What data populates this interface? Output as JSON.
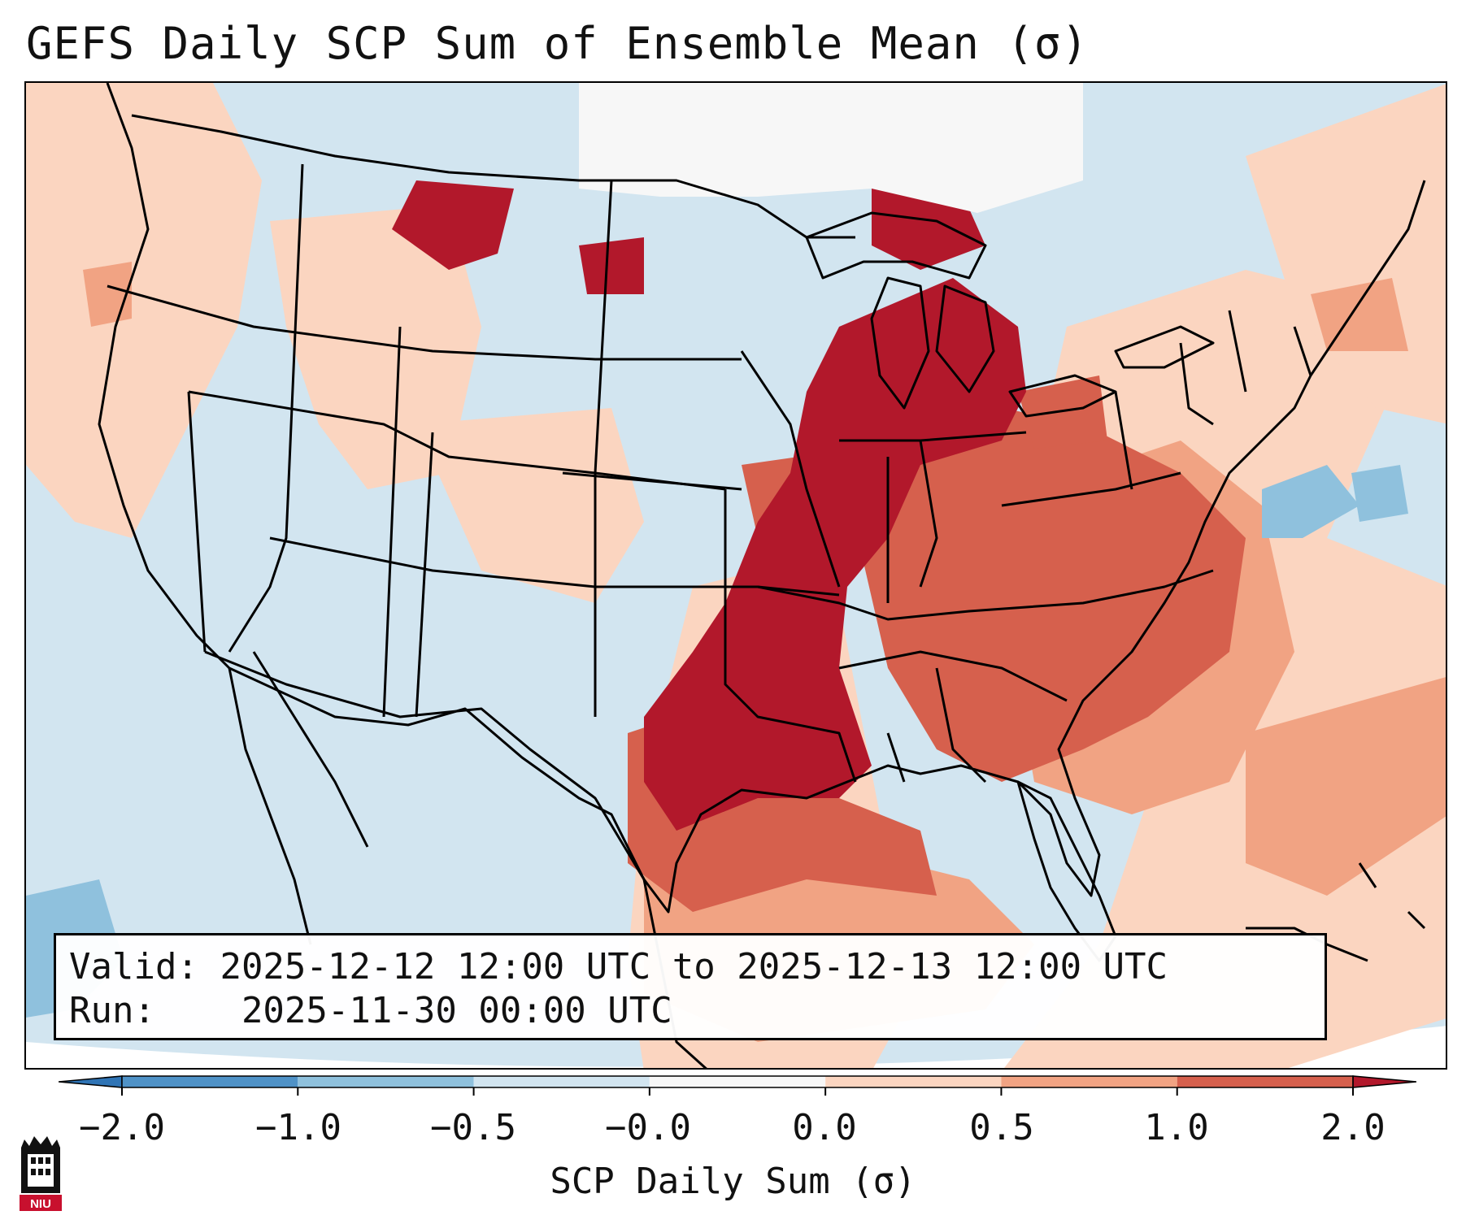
{
  "title": "GEFS Daily SCP Sum of Ensemble Mean (σ)",
  "info": {
    "valid_label": "Valid:",
    "valid_value": "2025-12-12 12:00 UTC to 2025-12-13 12:00 UTC",
    "run_label": "Run:",
    "run_value": "2025-11-30 00:00 UTC"
  },
  "colorbar": {
    "label": "SCP Daily Sum (σ)",
    "ticks": [
      "−2.0",
      "−1.0",
      "−0.5",
      "−0.0",
      "0.0",
      "0.5",
      "1.0",
      "2.0"
    ],
    "bins": [
      {
        "range": "< -2.0",
        "color": "#2f74b5"
      },
      {
        "range": "-2.0 to -1.0",
        "color": "#4f92c7"
      },
      {
        "range": "-1.0 to -0.5",
        "color": "#8fc1dd"
      },
      {
        "range": "-0.5 to -0.0",
        "color": "#d2e5f0"
      },
      {
        "range": "-0.0 to 0.0",
        "color": "#f7f7f7"
      },
      {
        "range": "0.0 to 0.5",
        "color": "#fbd5c0"
      },
      {
        "range": "0.5 to 1.0",
        "color": "#f1a383"
      },
      {
        "range": "1.0 to 2.0",
        "color": "#d6604d"
      },
      {
        "range": "> 2.0",
        "color": "#b2182b"
      }
    ]
  },
  "logo": {
    "text": "NIU"
  },
  "map": {
    "region": "Continental United States",
    "field": "SCP daily sum, ensemble mean (σ)",
    "regions": [
      {
        "name": "Mississippi Valley / Gulf Coast",
        "category": "> 2.0",
        "color": "#b2182b"
      },
      {
        "name": "Ohio Valley / Southeast",
        "category": "1.0 to 2.0",
        "color": "#d6604d"
      },
      {
        "name": "Gulf of Mexico",
        "category": "0.5 to 1.0",
        "color": "#f1a383"
      },
      {
        "name": "Western Atlantic / Mid-Atlantic",
        "category": "0.0 to 0.5",
        "color": "#fbd5c0"
      },
      {
        "name": "Ontario / Quebec",
        "category": "-0.0 to 0.0",
        "color": "#f7f7f7"
      },
      {
        "name": "Western US / Plains / Mexico",
        "category": "-0.5 to -0.0",
        "color": "#d2e5f0"
      }
    ]
  }
}
